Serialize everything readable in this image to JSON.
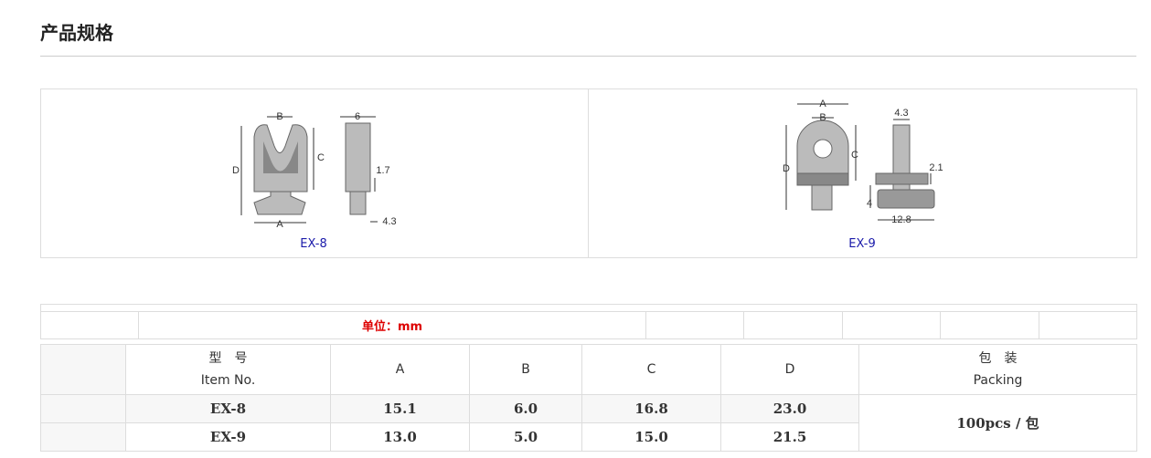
{
  "header": {
    "title": "产品规格"
  },
  "diagrams": [
    {
      "caption": "EX-8",
      "labels": [
        "B",
        "6",
        "C",
        "D",
        "1.7",
        "A",
        "4.3"
      ]
    },
    {
      "caption": "EX-9",
      "labels": [
        "A",
        "B",
        "4.3",
        "D",
        "C",
        "2.1",
        "4",
        "12.8"
      ]
    }
  ],
  "unit": "单位：mm",
  "table": {
    "header": {
      "model": [
        "型　号",
        "Item No."
      ],
      "columns": [
        "A",
        "B",
        "C",
        "D"
      ],
      "packing": [
        "包　装",
        "Packing"
      ]
    },
    "rows": [
      [
        "EX-8",
        "15.1",
        "6.0",
        "16.8",
        "23.0"
      ],
      [
        "EX-9",
        "13.0",
        "5.0",
        "15.0",
        "21.5"
      ]
    ],
    "packing": "100pcs / 包"
  }
}
